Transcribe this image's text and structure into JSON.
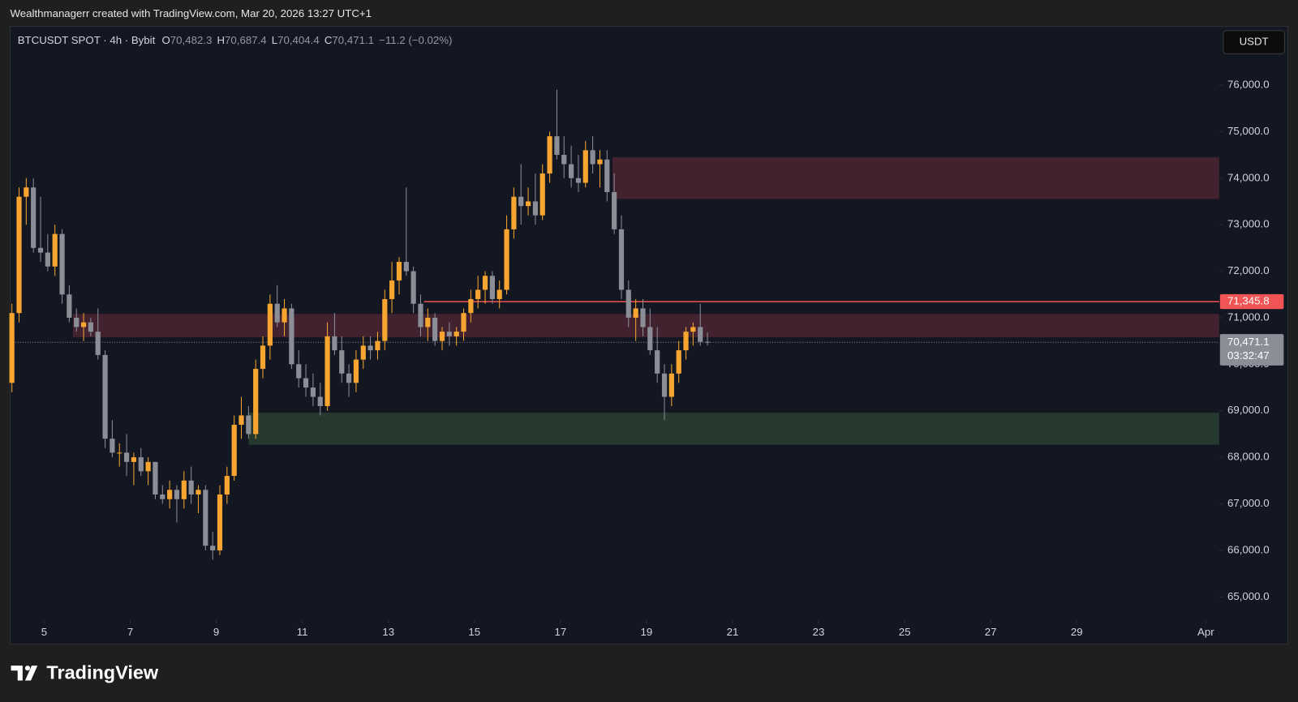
{
  "header": {
    "credit": "Wealthmanagerr created with TradingView.com, Mar 20, 2026 13:27 UTC+1"
  },
  "legend": {
    "symbol": "BTCUSDT SPOT · 4h · Bybit",
    "ohlc": [
      {
        "key": "O",
        "text": "70,482.3"
      },
      {
        "key": "H",
        "text": "70,687.4"
      },
      {
        "key": "L",
        "text": "70,404.4"
      },
      {
        "key": "C",
        "text": "70,471.1"
      }
    ],
    "change": "−11.2 (−0.02%)"
  },
  "currency_button": "USDT",
  "brand": "TradingView",
  "chart_data": {
    "type": "candlestick",
    "up_color": "#f7a530",
    "down_color": "#8b8e97",
    "x": [
      4.25,
      4.417,
      4.583,
      4.75,
      4.917,
      5.083,
      5.25,
      5.417,
      5.583,
      5.75,
      5.917,
      6.083,
      6.25,
      6.417,
      6.583,
      6.75,
      6.917,
      7.083,
      7.25,
      7.417,
      7.583,
      7.75,
      7.917,
      8.083,
      8.25,
      8.417,
      8.583,
      8.75,
      8.917,
      9.083,
      9.25,
      9.417,
      9.583,
      9.75,
      9.917,
      10.083,
      10.25,
      10.417,
      10.583,
      10.75,
      10.917,
      11.083,
      11.25,
      11.417,
      11.583,
      11.75,
      11.917,
      12.083,
      12.25,
      12.417,
      12.583,
      12.75,
      12.917,
      13.083,
      13.25,
      13.417,
      13.583,
      13.75,
      13.917,
      14.083,
      14.25,
      14.417,
      14.583,
      14.75,
      14.917,
      15.083,
      15.25,
      15.417,
      15.583,
      15.75,
      15.917,
      16.083,
      16.25,
      16.417,
      16.583,
      16.75,
      16.917,
      17.083,
      17.25,
      17.417,
      17.583,
      17.75,
      17.917,
      18.083,
      18.25,
      18.417,
      18.583,
      18.75,
      18.917,
      19.083,
      19.25,
      19.417,
      19.583,
      19.75,
      19.917,
      20.083,
      20.25,
      20.417
    ],
    "open": [
      69600,
      71100,
      73600,
      73800,
      72500,
      72400,
      72100,
      72800,
      71500,
      71000,
      70800,
      70900,
      70700,
      70200,
      68400,
      68100,
      68100,
      67900,
      68000,
      67700,
      67900,
      67200,
      67100,
      67300,
      67100,
      67500,
      67200,
      67300,
      66100,
      66000,
      67200,
      67600,
      68700,
      68900,
      68500,
      69900,
      70400,
      71300,
      70900,
      71200,
      70000,
      69700,
      69500,
      69300,
      69100,
      70600,
      70300,
      69800,
      69600,
      70100,
      70400,
      70300,
      70500,
      71400,
      71800,
      72200,
      72000,
      71300,
      70800,
      71000,
      70500,
      70700,
      70600,
      70700,
      71100,
      71400,
      71600,
      71900,
      71400,
      71600,
      72900,
      73600,
      73400,
      73500,
      73200,
      74100,
      74900,
      74500,
      74300,
      74000,
      73900,
      74600,
      74300,
      74400,
      73700,
      72900,
      71600,
      71000,
      71200,
      70800,
      70300,
      69800,
      69300,
      69800,
      70300,
      70700,
      70800,
      70482.3
    ],
    "high": [
      71300,
      73800,
      74000,
      74000,
      73600,
      72800,
      73000,
      72900,
      71700,
      71200,
      71100,
      71000,
      71200,
      70300,
      68800,
      68300,
      68500,
      68100,
      68200,
      68000,
      67900,
      67400,
      67500,
      67400,
      67700,
      67800,
      67400,
      67400,
      66400,
      67400,
      67800,
      68900,
      69300,
      69100,
      70100,
      70600,
      71500,
      71700,
      71400,
      71300,
      70300,
      70000,
      69800,
      69600,
      70900,
      71100,
      70600,
      70000,
      70300,
      70600,
      70600,
      70700,
      71600,
      72200,
      72300,
      73800,
      72100,
      71500,
      71200,
      71100,
      70800,
      70900,
      70800,
      71200,
      71600,
      71900,
      72000,
      72000,
      71800,
      73200,
      73800,
      74300,
      73800,
      74100,
      74300,
      75000,
      75900,
      74900,
      74700,
      74500,
      74800,
      74900,
      74600,
      74600,
      74100,
      73200,
      71800,
      71400,
      71400,
      71200,
      70800,
      70000,
      70000,
      70500,
      70800,
      70900,
      71300,
      70687.4
    ],
    "low": [
      69400,
      70900,
      73000,
      72400,
      72200,
      72000,
      71900,
      71300,
      70900,
      70700,
      70500,
      70600,
      70100,
      68200,
      68000,
      67800,
      67600,
      67400,
      67600,
      67400,
      67100,
      67000,
      66900,
      66600,
      66900,
      67000,
      66800,
      66000,
      65800,
      65900,
      67000,
      67500,
      68400,
      68400,
      68400,
      69700,
      70100,
      70800,
      70600,
      69900,
      69500,
      69300,
      69100,
      68900,
      69000,
      70200,
      69600,
      69300,
      69400,
      69900,
      70100,
      70100,
      70300,
      71100,
      71500,
      71900,
      71100,
      70600,
      70500,
      70400,
      70300,
      70400,
      70400,
      70500,
      70900,
      71200,
      71300,
      71300,
      71200,
      71500,
      72700,
      73000,
      73200,
      73000,
      73100,
      73900,
      74400,
      74000,
      73800,
      73700,
      73800,
      74100,
      73800,
      73500,
      72800,
      71400,
      70800,
      70500,
      70600,
      70200,
      69600,
      68800,
      69100,
      69600,
      70100,
      70400,
      70400,
      70404.4
    ],
    "close": [
      71100,
      73600,
      73800,
      72500,
      72400,
      72100,
      72800,
      71500,
      71000,
      70800,
      70900,
      70700,
      70200,
      68400,
      68100,
      68100,
      67900,
      68000,
      67700,
      67900,
      67200,
      67100,
      67300,
      67100,
      67500,
      67200,
      67300,
      66100,
      66000,
      67200,
      67600,
      68700,
      68900,
      68500,
      69900,
      70400,
      71300,
      70900,
      71200,
      70000,
      69700,
      69500,
      69300,
      69100,
      70600,
      70300,
      69800,
      69600,
      70100,
      70400,
      70300,
      70500,
      71400,
      71800,
      72200,
      72000,
      71300,
      70800,
      71000,
      70500,
      70700,
      70600,
      70700,
      71100,
      71400,
      71600,
      71900,
      71400,
      71600,
      72900,
      73600,
      73400,
      73500,
      73200,
      74100,
      74900,
      74500,
      74300,
      74000,
      73900,
      74600,
      74300,
      74400,
      73700,
      72900,
      71600,
      71000,
      71200,
      70800,
      70300,
      69800,
      69300,
      69800,
      70300,
      70700,
      70800,
      70482.3,
      70471.1
    ],
    "xlim": [
      4.21,
      32.31
    ],
    "xticks": [
      5,
      7,
      9,
      11,
      13,
      15,
      17,
      19,
      21,
      23,
      25,
      27,
      29,
      {
        "value": 32,
        "label": "Apr"
      }
    ],
    "ylim": [
      64500,
      77260
    ],
    "yticks": [
      {
        "value": 65000,
        "label": "65,000.0"
      },
      {
        "value": 66000,
        "label": "66,000.0"
      },
      {
        "value": 67000,
        "label": "67,000.0"
      },
      {
        "value": 68000,
        "label": "68,000.0"
      },
      {
        "value": 69000,
        "label": "69,000.0"
      },
      {
        "value": 70000,
        "label": "70,000.0"
      },
      {
        "value": 71000,
        "label": "71,000.0"
      },
      {
        "value": 72000,
        "label": "72,000.0"
      },
      {
        "value": 73000,
        "label": "73,000.0"
      },
      {
        "value": 74000,
        "label": "74,000.0"
      },
      {
        "value": 75000,
        "label": "75,000.0"
      },
      {
        "value": 76000,
        "label": "76,000.0"
      }
    ],
    "zones": [
      {
        "top": 74450,
        "bottom": 73550,
        "from": 18.21,
        "color": "#4a2530"
      },
      {
        "top": 71080,
        "bottom": 70580,
        "from": 5.67,
        "color": "#4a2530"
      },
      {
        "top": 68960,
        "bottom": 68270,
        "from": 9.75,
        "color": "#2a3f30"
      }
    ],
    "level_line": {
      "value": 71345.8,
      "label": "71,345.8",
      "from": 13.83,
      "color": "#f05454"
    },
    "current_price": {
      "value": 70471.1,
      "label": "70,471.1",
      "countdown": "03:32:47"
    }
  }
}
